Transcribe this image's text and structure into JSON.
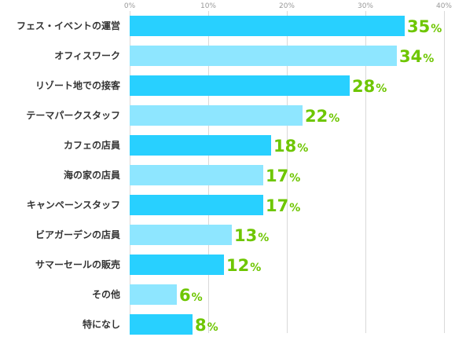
{
  "chart_data": {
    "type": "bar",
    "orientation": "horizontal",
    "categories": [
      "フェス・イベントの運営",
      "オフィスワーク",
      "リゾート地での接客",
      "テーマパークスタッフ",
      "カフェの店員",
      "海の家の店員",
      "キャンペーンスタッフ",
      "ビアガーデンの店員",
      "サマーセールの販売",
      "その他",
      "特になし"
    ],
    "values": [
      35,
      34,
      28,
      22,
      18,
      17,
      17,
      13,
      12,
      6,
      8
    ],
    "value_suffix": "%",
    "xlim": [
      0,
      40
    ],
    "ticks": [
      0,
      10,
      20,
      30,
      40
    ],
    "tick_labels": [
      "0%",
      "10%",
      "20%",
      "30%",
      "40%"
    ],
    "grid": true,
    "legend": "none",
    "title": "",
    "xlabel": "",
    "ylabel": "",
    "colors": {
      "bar_primary": "#28d0ff",
      "bar_secondary": "#8ee6ff",
      "value_label": "#6ec600",
      "gridline": "#d9d9d9",
      "axis_text": "#999999",
      "category_text": "#333333"
    }
  }
}
